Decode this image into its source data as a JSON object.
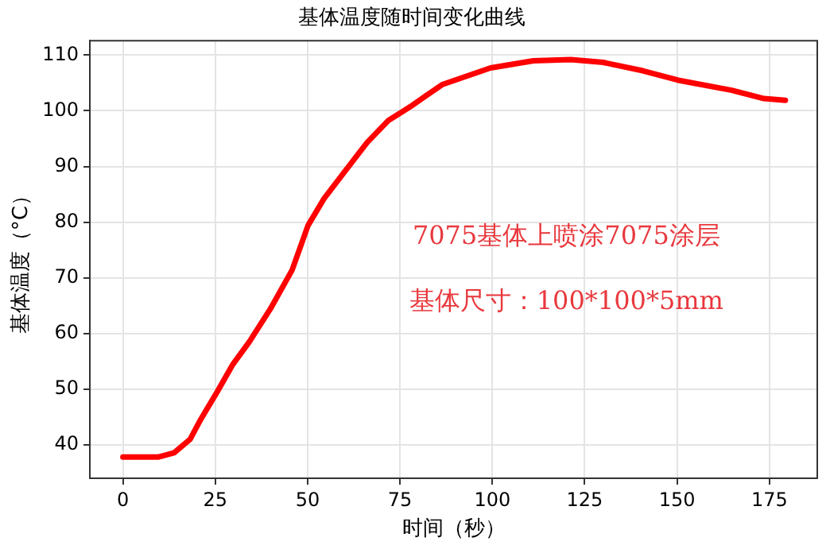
{
  "chart_data": {
    "type": "line",
    "title": "基体温度随时间变化曲线",
    "xlabel": "时间（秒）",
    "ylabel": "基体温度（°C）",
    "annotations": [
      "7075基体上喷涂7075涂层",
      "基体尺寸：100*100*5mm"
    ],
    "x": [
      0,
      9.5,
      13.9,
      18.2,
      21,
      25.5,
      29.8,
      34.2,
      39.9,
      45.8,
      50.1,
      54.5,
      60.3,
      66.1,
      71.9,
      77.7,
      82,
      86.4,
      99.5,
      111.1,
      121.2,
      130,
      140.7,
      150.3,
      164.8,
      173.5,
      179.3
    ],
    "series": [
      {
        "color": "#ff0000",
        "values": [
          37.8,
          37.8,
          38.6,
          41.0,
          44.5,
          49.5,
          54.5,
          58.5,
          64.4,
          71.4,
          79.4,
          84.3,
          89.3,
          94.3,
          98.3,
          100.7,
          102.7,
          104.7,
          107.7,
          109.0,
          109.2,
          108.7,
          107.2,
          105.5,
          103.7,
          102.2,
          101.9
        ]
      }
    ],
    "xlim": [
      -8.95,
      187.95
    ],
    "xticks": [
      0,
      25,
      50,
      75,
      100,
      125,
      150,
      175
    ],
    "ylim": [
      34.0,
      112.6
    ],
    "yticks": [
      40,
      50,
      60,
      70,
      80,
      90,
      100,
      110
    ],
    "grid": true,
    "legend": false,
    "marker": "none",
    "line_style": "solid"
  }
}
